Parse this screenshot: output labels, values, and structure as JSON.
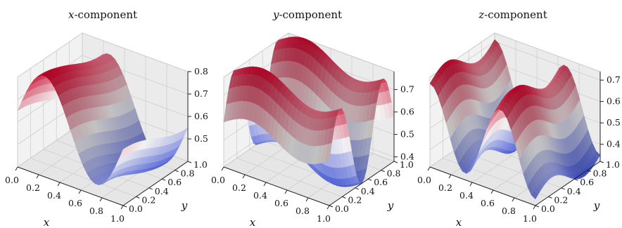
{
  "figure": {
    "background": "#ffffff",
    "pane_color": "#f2f2f2",
    "grid_color": "#cfcfcf",
    "colormap": "coolwarm",
    "colormap_low": "#3b4cc0",
    "colormap_mid": "#dddcdc",
    "colormap_high": "#b40426"
  },
  "chart_data": [
    {
      "type": "surface",
      "title_prefix": "x",
      "title_suffix": "-component",
      "xlabel": "x",
      "ylabel": "y",
      "xlim": [
        0,
        1
      ],
      "ylim": [
        0,
        1
      ],
      "zlim": [
        0.4,
        0.8
      ],
      "x_ticks": [
        "0.0",
        "0.2",
        "0.4",
        "0.6",
        "0.8",
        "1.0"
      ],
      "y_ticks": [
        "0.0",
        "0.2",
        "0.4",
        "0.6",
        "0.8",
        "1.0"
      ],
      "z_ticks": [
        "0.5",
        "0.6",
        "0.7",
        "0.8"
      ],
      "surface": {
        "base": 0.6,
        "amp_x": 0.2,
        "freq_x": 1,
        "phase_x": 0,
        "amp_y": 0.05,
        "freq_y": 0.5,
        "phase_y": 1.57
      }
    },
    {
      "type": "surface",
      "title_prefix": "y",
      "title_suffix": "-component",
      "xlabel": "x",
      "ylabel": "y",
      "xlim": [
        0,
        1
      ],
      "ylim": [
        0,
        1
      ],
      "zlim": [
        0.38,
        0.78
      ],
      "x_ticks": [
        "0.0",
        "0.2",
        "0.4",
        "0.6",
        "0.8",
        "1.0"
      ],
      "y_ticks": [
        "0.0",
        "0.2",
        "0.4",
        "0.6",
        "0.8",
        "1.0"
      ],
      "z_ticks": [
        "0.4",
        "0.5",
        "0.6",
        "0.7"
      ],
      "surface": {
        "base": 0.58,
        "amp_x": 0.05,
        "freq_x": 1,
        "phase_x": 0,
        "amp_y": 0.2,
        "freq_y": 1.5,
        "phase_y": 0
      }
    },
    {
      "type": "surface",
      "title_prefix": "z",
      "title_suffix": "-component",
      "xlabel": "x",
      "ylabel": "y",
      "xlim": [
        0,
        1
      ],
      "ylim": [
        0,
        1
      ],
      "zlim": [
        0.32,
        0.74
      ],
      "x_ticks": [
        "0.0",
        "0.2",
        "0.4",
        "0.6",
        "0.8",
        "1.0"
      ],
      "y_ticks": [
        "0.0",
        "0.2",
        "0.4",
        "0.6",
        "0.8",
        "1.0"
      ],
      "z_ticks": [
        "0.4",
        "0.5",
        "0.6",
        "0.7"
      ],
      "surface": {
        "base": 0.53,
        "amp_x": 0.18,
        "freq_x": 1.5,
        "phase_x": 1.57,
        "amp_y": 0.05,
        "freq_y": 1,
        "phase_y": 0
      }
    }
  ]
}
